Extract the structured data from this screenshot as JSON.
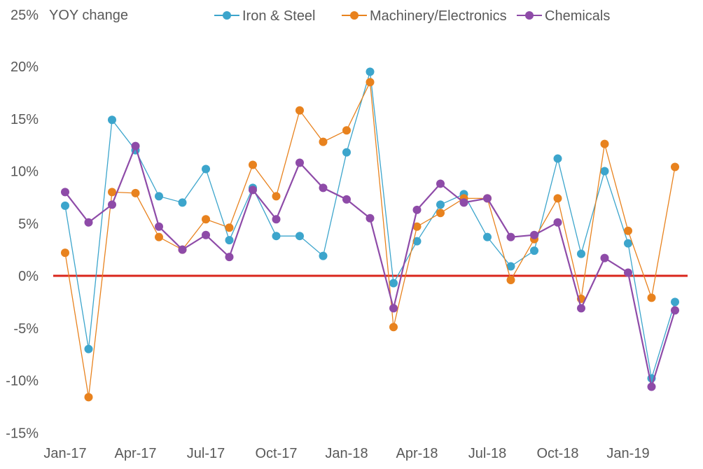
{
  "chart_data": {
    "type": "line",
    "title": "",
    "ylabel": "YOY change",
    "xlabel": "",
    "ylim": [
      -15,
      25
    ],
    "yticks": [
      -15,
      -10,
      -5,
      0,
      5,
      10,
      15,
      20,
      25
    ],
    "ytick_labels": [
      "-15%",
      "-10%",
      "-5%",
      "0%",
      "5%",
      "10%",
      "15%",
      "20%",
      "25%"
    ],
    "x": [
      "Jan-17",
      "Feb-17",
      "Mar-17",
      "Apr-17",
      "May-17",
      "Jun-17",
      "Jul-17",
      "Aug-17",
      "Sep-17",
      "Oct-17",
      "Nov-17",
      "Dec-17",
      "Jan-18",
      "Feb-18",
      "Mar-18",
      "Apr-18",
      "May-18",
      "Jun-18",
      "Jul-18",
      "Aug-18",
      "Sep-18",
      "Oct-18",
      "Nov-18",
      "Dec-18",
      "Jan-19",
      "Feb-19",
      "Mar-19"
    ],
    "xtick_labels": [
      "Jan-17",
      "Apr-17",
      "Jul-17",
      "Oct-17",
      "Jan-18",
      "Apr-18",
      "Jul-18",
      "Oct-18",
      "Jan-19"
    ],
    "legend_position": "top",
    "grid": false,
    "reference_line": {
      "value": 0,
      "color": "#d9261c"
    },
    "series": [
      {
        "name": "Iron & Steel",
        "color": "#3ca5cc",
        "values": [
          6.7,
          -7.0,
          14.9,
          12.0,
          7.6,
          7.0,
          10.2,
          3.4,
          8.4,
          3.8,
          3.8,
          1.9,
          11.8,
          19.5,
          -0.7,
          3.3,
          6.8,
          7.8,
          3.7,
          0.9,
          2.4,
          11.2,
          2.1,
          10.0,
          3.1,
          -9.8,
          -2.5
        ]
      },
      {
        "name": "Machinery/Electronics",
        "color": "#e8821e",
        "values": [
          2.2,
          -11.6,
          8.0,
          7.9,
          3.7,
          2.5,
          5.4,
          4.6,
          10.6,
          7.6,
          15.8,
          12.8,
          13.9,
          18.5,
          -4.9,
          4.7,
          6.0,
          7.4,
          7.4,
          -0.4,
          3.5,
          7.4,
          -2.2,
          12.6,
          4.3,
          -2.1,
          10.4
        ]
      },
      {
        "name": "Chemicals",
        "color": "#8e4ba8",
        "values": [
          8.0,
          5.1,
          6.8,
          12.4,
          4.7,
          2.5,
          3.9,
          1.8,
          8.2,
          5.4,
          10.8,
          8.4,
          7.3,
          5.5,
          -3.1,
          6.3,
          8.8,
          7.0,
          7.4,
          3.7,
          3.9,
          5.1,
          -3.1,
          1.7,
          0.3,
          -10.6,
          -3.3
        ]
      }
    ]
  }
}
